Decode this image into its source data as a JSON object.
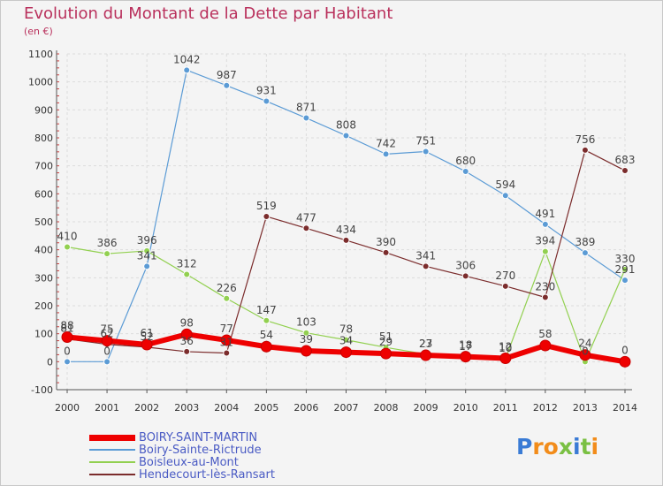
{
  "title": "Evolution du Montant de la Dette par Habitant",
  "subtitle": "(en €)",
  "logo": "Proxiti",
  "colors": {
    "title": "#b9305c",
    "legend_text": "#4a5bc4",
    "grid": "#dcdcdc",
    "axis": "#555555"
  },
  "chart_data": {
    "type": "line",
    "title": "Evolution du Montant de la Dette par Habitant",
    "ylabel": "(en €)",
    "xlabel": "",
    "x": [
      2000,
      2001,
      2002,
      2003,
      2004,
      2005,
      2006,
      2007,
      2008,
      2009,
      2010,
      2011,
      2012,
      2013,
      2014
    ],
    "ylim": [
      -100,
      1100
    ],
    "yticks": [
      -100,
      0,
      100,
      200,
      300,
      400,
      500,
      600,
      700,
      800,
      900,
      1000,
      1100
    ],
    "grid": "horizontal",
    "legend_position": "bottom-left",
    "series": [
      {
        "name": "Boiry-Sainte-Rictrude",
        "color": "#5b9bd5",
        "width": 1.2,
        "values": [
          0,
          0,
          341,
          1042,
          987,
          931,
          871,
          808,
          742,
          751,
          680,
          594,
          491,
          389,
          291
        ],
        "labels": [
          "0",
          "0",
          "341",
          "1042",
          "987",
          "931",
          "871",
          "808",
          "742",
          "751",
          "680",
          "594",
          "491",
          "389",
          "291"
        ]
      },
      {
        "name": "Boisleux-au-Mont",
        "color": "#92d050",
        "width": 1.2,
        "values": [
          410,
          386,
          396,
          312,
          226,
          147,
          103,
          78,
          51,
          27,
          17,
          10,
          394,
          0,
          330
        ],
        "labels": [
          "410",
          "386",
          "396",
          "312",
          "226",
          "147",
          "103",
          "78",
          "51",
          "27",
          "17",
          "10",
          "394",
          "0",
          "330"
        ]
      },
      {
        "name": "Hendecourt-lès-Ransart",
        "color": "#7b2c2c",
        "width": 1.2,
        "values": [
          81,
          62,
          52,
          36,
          31,
          519,
          477,
          434,
          390,
          341,
          306,
          270,
          230,
          756,
          683
        ],
        "labels": [
          "81",
          "62",
          "52",
          "36",
          "31",
          "519",
          "477",
          "434",
          "390",
          "341",
          "306",
          "270",
          "230",
          "756",
          "683"
        ]
      },
      {
        "name": "BOIRY-SAINT-MARTIN",
        "color": "#ee0000",
        "width": 6,
        "values": [
          88,
          75,
          61,
          98,
          77,
          54,
          39,
          34,
          29,
          23,
          18,
          12,
          58,
          24,
          0
        ],
        "labels": [
          "88",
          "75",
          "61",
          "98",
          "77",
          "54",
          "39",
          "34",
          "29",
          "23",
          "18",
          "12",
          "58",
          "24",
          "0"
        ]
      }
    ]
  },
  "legend": [
    {
      "name": "BOIRY-SAINT-MARTIN",
      "color": "#ee0000",
      "thickness": 7
    },
    {
      "name": "Boiry-Sainte-Rictrude",
      "color": "#5b9bd5",
      "thickness": 2
    },
    {
      "name": "Boisleux-au-Mont",
      "color": "#92d050",
      "thickness": 2
    },
    {
      "name": "Hendecourt-lès-Ransart",
      "color": "#7b2c2c",
      "thickness": 2
    }
  ]
}
